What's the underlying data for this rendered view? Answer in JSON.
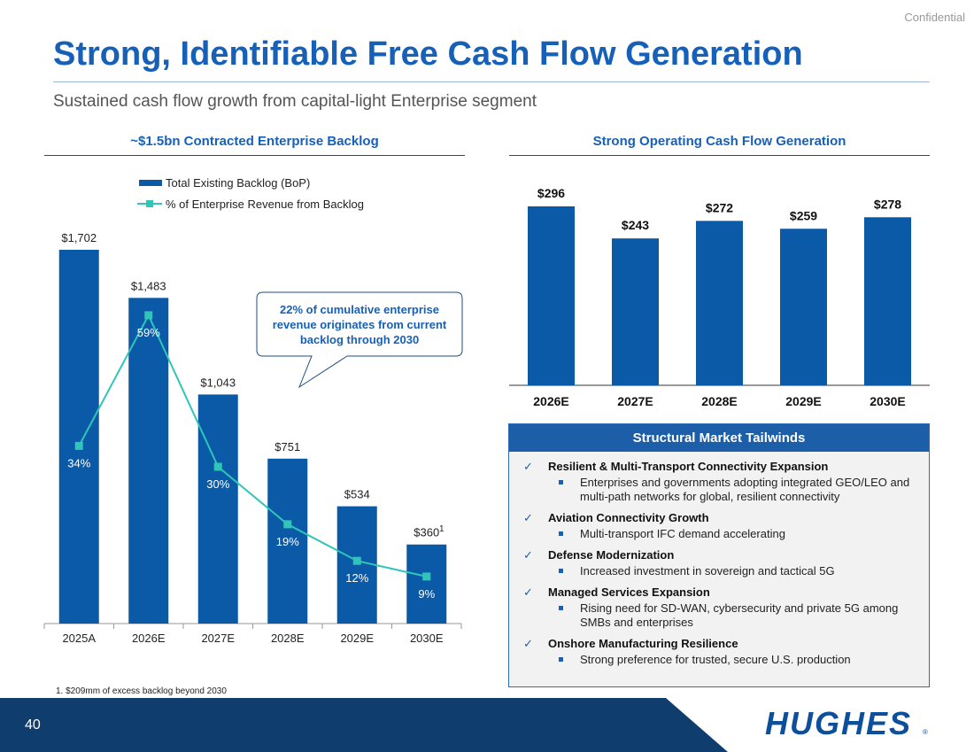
{
  "header": {
    "confidential": "Confidential",
    "title": "Strong, Identifiable Free Cash Flow Generation",
    "subtitle": "Sustained cash flow growth from capital-light Enterprise segment"
  },
  "left_panel": {
    "heading": "~$1.5bn Contracted Enterprise Backlog",
    "callout": [
      "22% of cumulative enterprise",
      "revenue originates from current",
      "backlog through 2030"
    ],
    "footnote_marker": "1"
  },
  "right_panel": {
    "heading": "Strong Operating Cash Flow Generation"
  },
  "chart_data": [
    {
      "type": "bar",
      "categories": [
        "2025A",
        "2026E",
        "2027E",
        "2028E",
        "2029E",
        "2030E"
      ],
      "series": [
        {
          "name": "Total Existing Backlog (BoP)",
          "type": "bar",
          "values": [
            1702,
            1483,
            1043,
            751,
            534,
            360
          ],
          "labels": [
            "$1,702",
            "$1,483",
            "$1,043",
            "$751",
            "$534",
            "$360"
          ],
          "color": "#0a5aa8"
        },
        {
          "name": "% of Enterprise Revenue from Backlog",
          "type": "line",
          "values": [
            34,
            59,
            30,
            19,
            12,
            9
          ],
          "labels": [
            "34%",
            "59%",
            "30%",
            "19%",
            "12%",
            "9%"
          ],
          "color": "#2fc6b8"
        }
      ],
      "ylim": [
        0,
        1750
      ],
      "line_ylim": [
        0,
        100
      ],
      "legend": "top-left",
      "grid": false
    },
    {
      "type": "bar",
      "categories": [
        "2026E",
        "2027E",
        "2028E",
        "2029E",
        "2030E"
      ],
      "values": [
        296,
        243,
        272,
        259,
        278
      ],
      "labels": [
        "$296",
        "$243",
        "$272",
        "$259",
        "$278"
      ],
      "ylim": [
        0,
        296
      ],
      "color": "#0a5aa8",
      "grid": false
    }
  ],
  "tailwinds": {
    "heading": "Structural Market Tailwinds",
    "check": "✓",
    "items": [
      {
        "heading": "Resilient & Multi-Transport Connectivity Expansion",
        "detail": "Enterprises and governments adopting integrated GEO/LEO and multi-path networks for global, resilient connectivity"
      },
      {
        "heading": "Aviation Connectivity Growth",
        "detail": "Multi-transport IFC demand accelerating"
      },
      {
        "heading": "Defense Modernization",
        "detail": "Increased investment in sovereign and tactical 5G"
      },
      {
        "heading": "Managed Services Expansion",
        "detail": "Rising need for SD-WAN, cybersecurity and private 5G among SMBs and enterprises"
      },
      {
        "heading": "Onshore Manufacturing Resilience",
        "detail": "Strong preference for trusted, secure U.S. production"
      }
    ]
  },
  "footer": {
    "footnote": "1.    $209mm of excess backlog beyond 2030",
    "page_number": "40",
    "logo": "HUGHES",
    "band_color": "#0f3d6e"
  }
}
